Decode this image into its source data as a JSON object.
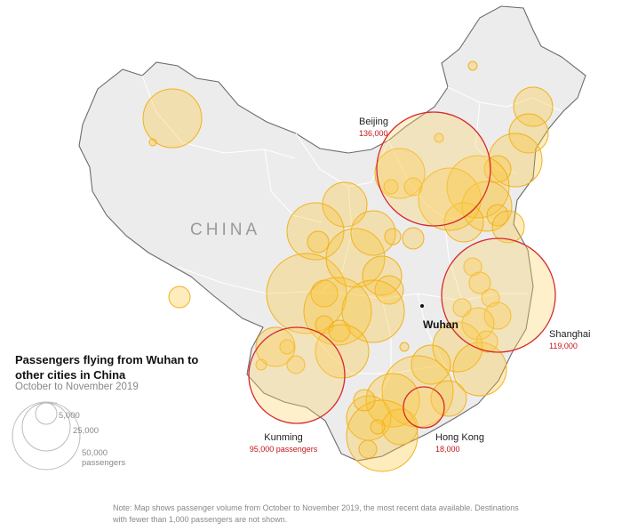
{
  "map": {
    "country_label": "CHINA",
    "origin_label": "Wuhan",
    "highlighted_cities": [
      {
        "name": "Beijing",
        "value_label": "136,000",
        "passengers": 136000
      },
      {
        "name": "Shanghai",
        "value_label": "119,000",
        "passengers": 119000
      },
      {
        "name": "Kunming",
        "value_label": "95,000 passengers",
        "passengers": 95000
      },
      {
        "name": "Hong Kong",
        "value_label": "18,000",
        "passengers": 18000
      }
    ],
    "colors": {
      "bubble_fill": "#fcc531",
      "bubble_stroke": "#f2b21c",
      "highlight_stroke": "#d7282f",
      "land": "#ececec"
    }
  },
  "legend": {
    "title": "Passengers flying from Wuhan to other cities in China",
    "subtitle": "October to November 2019",
    "items": [
      {
        "label": "5,000",
        "passengers": 5000
      },
      {
        "label": "25,000",
        "passengers": 25000
      },
      {
        "label": "50,000 passengers",
        "passengers": 50000
      }
    ]
  },
  "note": "Note: Map shows passenger volume from October to November 2019, the most recent data available. Destinations with fewer than 1,000 passengers are not shown."
}
